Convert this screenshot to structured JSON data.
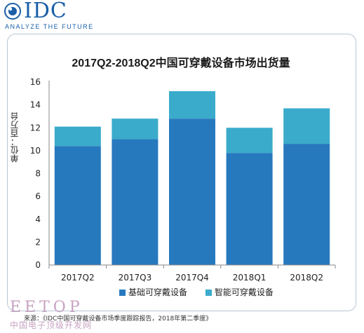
{
  "logo": {
    "text": "IDC",
    "tagline": "ANALYZE THE FUTURE"
  },
  "colors": {
    "basic": "#2779be",
    "smart": "#3aabcb",
    "axis": "#888888",
    "brand": "#1a5fa8"
  },
  "chart_data": {
    "type": "bar",
    "stacked": true,
    "title": "2017Q2-2018Q2中国可穿戴设备市场出货量",
    "xlabel": "",
    "ylabel": "单位：百万台",
    "ylim": [
      0,
      16
    ],
    "yticks": [
      0,
      2,
      4,
      6,
      8,
      10,
      12,
      14,
      16
    ],
    "categories": [
      "2017Q2",
      "2017Q3",
      "2017Q4",
      "2018Q1",
      "2018Q2"
    ],
    "series": [
      {
        "name": "基础可穿戴设备",
        "values": [
          10.4,
          11.0,
          12.8,
          9.8,
          10.6
        ]
      },
      {
        "name": "智能可穿戴设备",
        "values": [
          1.7,
          1.8,
          2.4,
          2.2,
          3.1
        ]
      }
    ],
    "grid": false,
    "legend_position": "bottom"
  },
  "source": "来源：《IDC中国可穿戴设备市场季度跟踪报告，2018年第二季度》",
  "watermark": {
    "line1": "EETOP",
    "line2": "中国电子顶级开发网"
  }
}
